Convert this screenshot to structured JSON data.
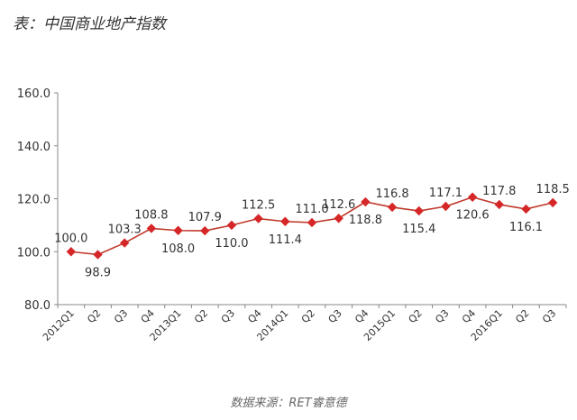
{
  "chart_data": {
    "type": "line",
    "title": "表：中国商业地产指数",
    "source": "数据来源：RET睿意德",
    "categories": [
      "2012Q1",
      "Q2",
      "Q3",
      "Q4",
      "2013Q1",
      "Q2",
      "Q3",
      "Q4",
      "2014Q1",
      "Q2",
      "Q3",
      "Q4",
      "2015Q1",
      "Q2",
      "Q3",
      "Q4",
      "2016Q1",
      "Q2",
      "Q3"
    ],
    "series": [
      {
        "values": [
          100.0,
          98.9,
          103.3,
          108.8,
          108.0,
          107.9,
          110.0,
          112.5,
          111.4,
          111.0,
          112.6,
          118.8,
          116.8,
          115.4,
          117.1,
          120.6,
          117.8,
          116.1,
          118.5
        ],
        "labels": [
          "100.0",
          "98.9",
          "103.3",
          "108.8",
          "108.0",
          "107.9",
          "110.0",
          "112.5",
          "111.4",
          "111.0",
          "112.6",
          "118.8",
          "116.8",
          "115.4",
          "117.1",
          "120.6",
          "117.8",
          "116.1",
          "118.5"
        ]
      }
    ],
    "yticks": [
      "160.0",
      "140.0",
      "120.0",
      "100.0",
      "80.0"
    ],
    "ylim": [
      80,
      160
    ],
    "grid": false,
    "colors": {
      "line": "#c0392b",
      "marker": "#d62728",
      "axis": "#888888"
    }
  }
}
